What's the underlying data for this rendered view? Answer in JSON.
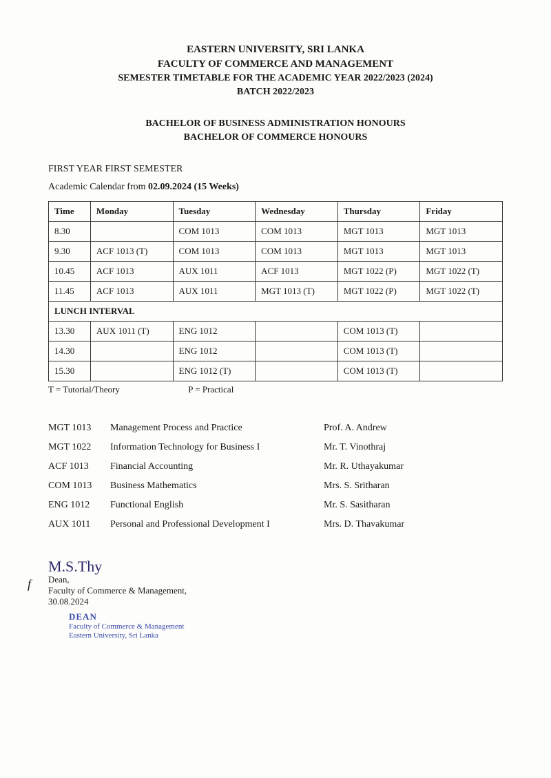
{
  "header": {
    "university": "EASTERN UNIVERSITY, SRI LANKA",
    "faculty": "FACULTY OF COMMERCE AND MANAGEMENT",
    "title": "SEMESTER TIMETABLE FOR THE ACADEMIC YEAR 2022/2023 (2024)",
    "batch": "BATCH 2022/2023",
    "program1": "BACHELOR OF BUSINESS ADMINISTRATION HONOURS",
    "program2": "BACHELOR OF COMMERCE HONOURS"
  },
  "section": {
    "year_sem": "FIRST YEAR FIRST SEMESTER",
    "calendar_prefix": "Academic Calendar from ",
    "calendar_bold": "02.09.2024 (15 Weeks)"
  },
  "table": {
    "columns": [
      "Time",
      "Monday",
      "Tuesday",
      "Wednesday",
      "Thursday",
      "Friday"
    ],
    "rows_top": [
      [
        "8.30",
        "",
        "COM 1013",
        "COM 1013",
        "MGT 1013",
        "MGT 1013"
      ],
      [
        "9.30",
        "ACF 1013 (T)",
        "COM 1013",
        "COM 1013",
        "MGT 1013",
        "MGT 1013"
      ],
      [
        "10.45",
        "ACF 1013",
        "AUX 1011",
        "ACF 1013",
        "MGT 1022 (P)",
        "MGT 1022 (T)"
      ],
      [
        "11.45",
        "ACF 1013",
        "AUX 1011",
        "MGT 1013 (T)",
        "MGT 1022 (P)",
        "MGT 1022 (T)"
      ]
    ],
    "lunch": "LUNCH INTERVAL",
    "rows_bottom": [
      [
        "13.30",
        "AUX 1011 (T)",
        "ENG 1012",
        "",
        "COM 1013 (T)",
        ""
      ],
      [
        "14.30",
        "",
        "ENG 1012",
        "",
        "COM 1013 (T)",
        ""
      ],
      [
        "15.30",
        "",
        "ENG 1012 (T)",
        "",
        "COM 1013 (T)",
        ""
      ]
    ]
  },
  "legend": {
    "t": "T = Tutorial/Theory",
    "p": "P = Practical"
  },
  "courses": [
    {
      "code": "MGT 1013",
      "title": "Management Process and Practice",
      "instructor": "Prof. A. Andrew"
    },
    {
      "code": "MGT 1022",
      "title": "Information Technology for Business I",
      "instructor": "Mr. T. Vinothraj"
    },
    {
      "code": "ACF 1013",
      "title": "Financial Accounting",
      "instructor": "Mr. R. Uthayakumar"
    },
    {
      "code": "COM 1013",
      "title": "Business Mathematics",
      "instructor": "Mrs. S. Sritharan"
    },
    {
      "code": "ENG 1012",
      "title": "Functional English",
      "instructor": "Mr. S. Sasitharan"
    },
    {
      "code": "AUX 1011",
      "title": "Personal and Professional Development I",
      "instructor": "Mrs. D. Thavakumar"
    }
  ],
  "signature": {
    "sign": "M.S.Thy",
    "dean": "Dean,",
    "faculty": "Faculty of Commerce & Management,",
    "date": "30.08.2024",
    "stamp_dean": "DEAN",
    "stamp_l1": "Faculty of Commerce & Management",
    "stamp_l2": "Eastern University, Sri Lanka",
    "f_mark": "f"
  },
  "style": {
    "page_bg": "#fdfdfb",
    "text_color": "#1a1a1a",
    "border_color": "#333333",
    "stamp_color": "#3a4aa8",
    "sign_color": "#2a2a6a",
    "body_font_pt": 14,
    "table_font_pt": 13
  }
}
